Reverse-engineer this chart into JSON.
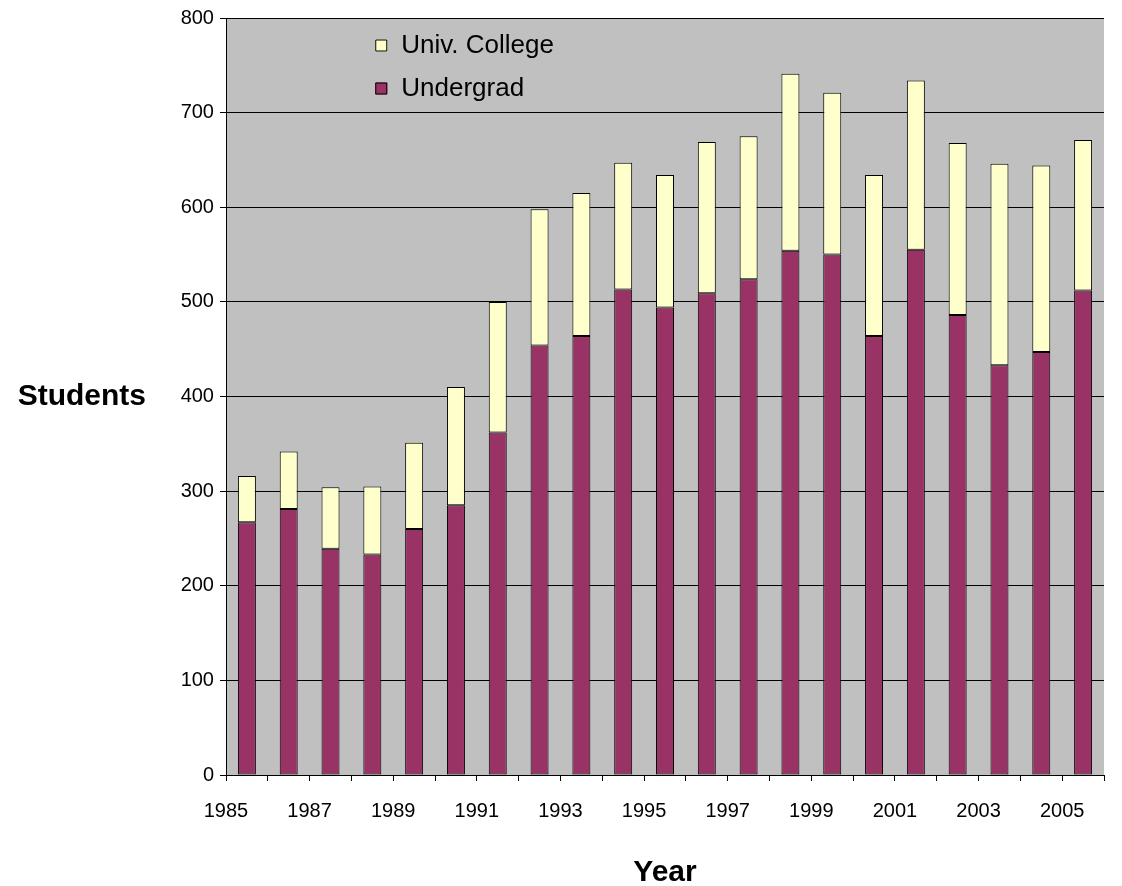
{
  "chart_data": {
    "type": "bar",
    "stacked": true,
    "xlabel": "Year",
    "ylabel": "Students",
    "x": [
      1985.5,
      1986.5,
      1987.5,
      1988.5,
      1989.5,
      1990.5,
      1991.5,
      1992.5,
      1993.5,
      1994.5,
      1995.5,
      1996.5,
      1997.5,
      1998.5,
      1999.5,
      2000.5,
      2001.5,
      2002.5,
      2003.5,
      2004.5,
      2005.5
    ],
    "series": [
      {
        "name": "Undergrad",
        "color": "#993366",
        "values": [
          267,
          281,
          239,
          233,
          260,
          285,
          362,
          454,
          464,
          513,
          494,
          509,
          524,
          554,
          550,
          464,
          555,
          486,
          433,
          447,
          512
        ]
      },
      {
        "name": "Univ. College",
        "color": "#ffffcc",
        "values": [
          49,
          61,
          65,
          72,
          91,
          125,
          138,
          144,
          151,
          134,
          140,
          160,
          151,
          187,
          171,
          170,
          179,
          182,
          213,
          197,
          159
        ]
      }
    ],
    "xlim": [
      1985,
      2006
    ],
    "xticks": [
      1985,
      {
        "value": 1986,
        "label": null
      },
      1987,
      {
        "value": 1988,
        "label": null
      },
      1989,
      {
        "value": 1990,
        "label": null
      },
      1991,
      {
        "value": 1992,
        "label": null
      },
      1993,
      {
        "value": 1994,
        "label": null
      },
      1995,
      {
        "value": 1996,
        "label": null
      },
      1997,
      {
        "value": 1998,
        "label": null
      },
      1999,
      {
        "value": 2000,
        "label": null
      },
      2001,
      {
        "value": 2002,
        "label": null
      },
      2003,
      {
        "value": 2004,
        "label": null
      },
      2005,
      {
        "value": 2006,
        "label": null
      }
    ],
    "ylim": [
      0,
      800
    ],
    "yticks": [
      0,
      100,
      200,
      300,
      400,
      500,
      600,
      700,
      800
    ],
    "grid": "y",
    "legend": "top left"
  }
}
